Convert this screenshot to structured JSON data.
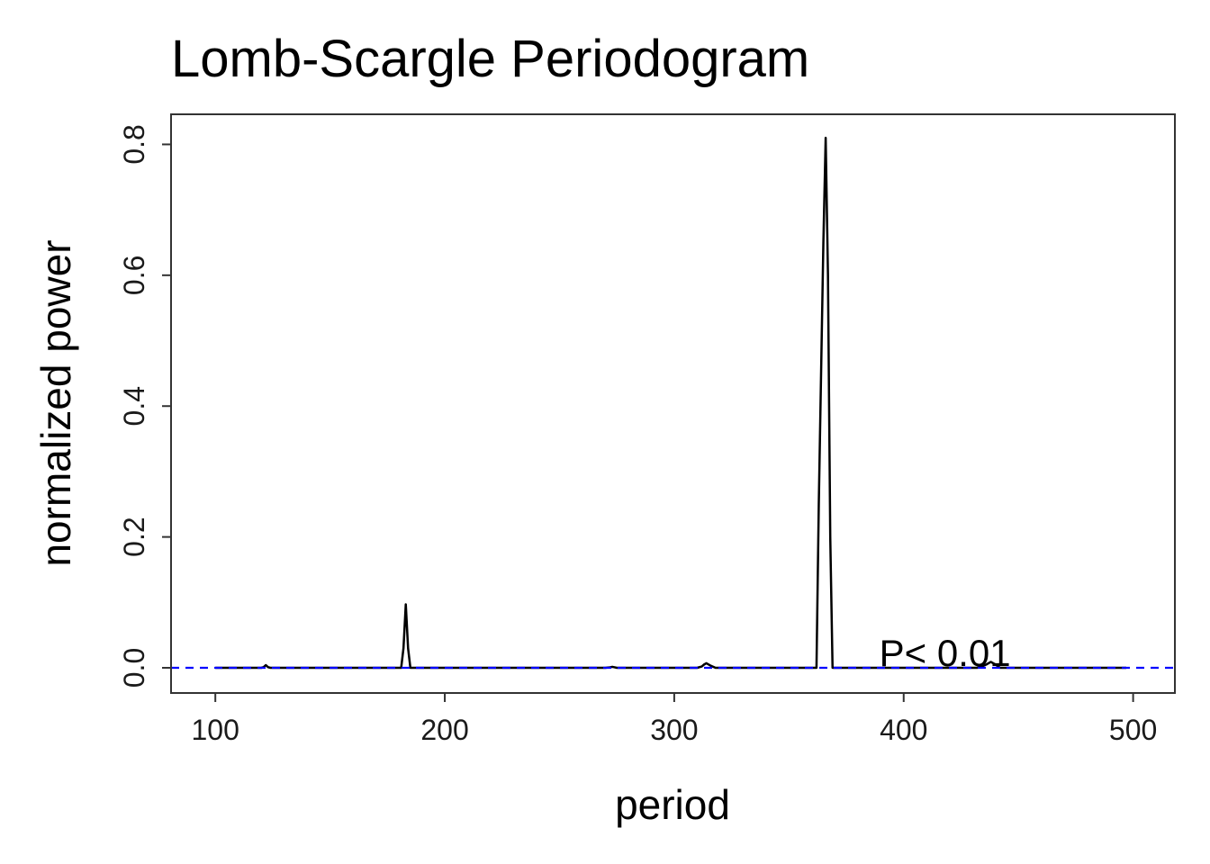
{
  "chart_data": {
    "type": "line",
    "title": "Lomb-Scargle Periodogram",
    "xlabel": "period",
    "ylabel": "normalized power",
    "xlim": [
      80.7,
      518.2
    ],
    "ylim": [
      -0.0385,
      0.846
    ],
    "x_ticks": [
      100,
      200,
      300,
      400,
      500
    ],
    "x_tick_labels": [
      "100",
      "200",
      "300",
      "400",
      "500"
    ],
    "y_ticks": [
      0.0,
      0.2,
      0.4,
      0.6,
      0.8
    ],
    "y_tick_labels": [
      "0.0",
      "0.2",
      "0.4",
      "0.6",
      "0.8"
    ],
    "grid": false,
    "legend": "none",
    "series": [
      {
        "color": "#000000",
        "x": [
          100,
          120,
          121,
          122,
          123,
          124,
          150,
          181,
          182,
          183,
          184,
          185,
          220,
          270,
          272,
          273,
          274,
          275,
          277,
          300,
          310,
          312,
          313,
          314,
          316,
          318,
          340,
          362,
          363,
          365,
          366,
          367,
          368,
          369,
          370,
          400,
          432,
          434,
          436,
          438,
          440,
          442,
          470,
          497
        ],
        "y": [
          0.0,
          0.0,
          0.001,
          0.004,
          0.001,
          0.0,
          0.0,
          0.0,
          0.03,
          0.097,
          0.03,
          0.0,
          0.0,
          0.0,
          0.0008,
          0.0015,
          0.0008,
          0.0,
          0.0,
          0.0,
          0.0,
          0.002,
          0.005,
          0.007,
          0.003,
          0.0,
          0.0,
          0.0,
          0.25,
          0.65,
          0.81,
          0.6,
          0.2,
          0.0,
          0.0,
          0.0,
          0.0,
          0.002,
          0.005,
          0.009,
          0.005,
          0.0,
          0.0,
          0.0
        ]
      }
    ],
    "threshold": {
      "y": 0.0,
      "color": "#0000ff",
      "style": "dashed"
    },
    "annotations": [
      {
        "text": "P< 0.01",
        "x": 418,
        "y": 0.0
      }
    ]
  }
}
